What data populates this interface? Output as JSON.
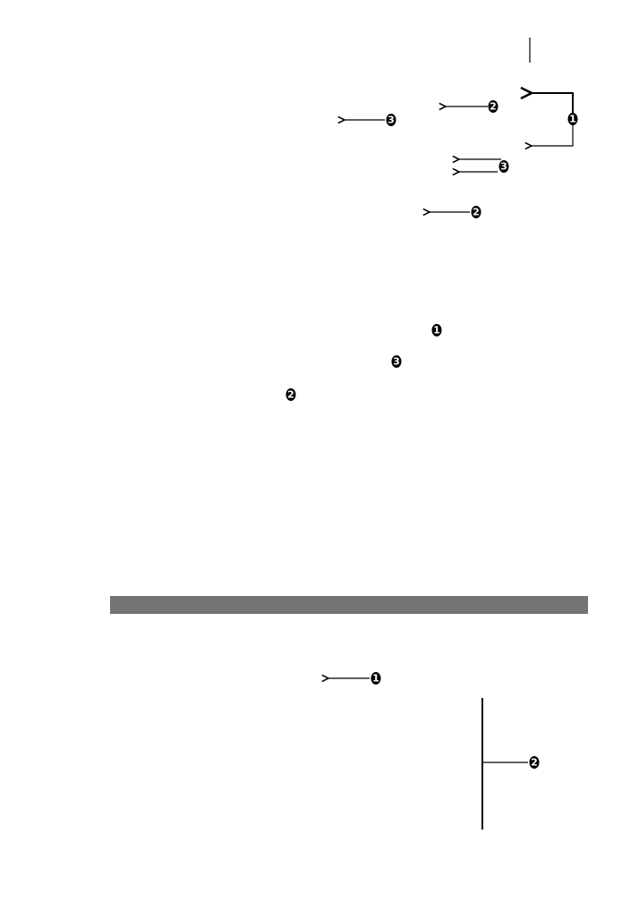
{
  "page": {
    "section_bar_color": "#747474",
    "callouts": [
      {
        "label": "1"
      },
      {
        "label": "2"
      },
      {
        "label": "3"
      },
      {
        "label": "3"
      },
      {
        "label": "2"
      },
      {
        "label": "1"
      },
      {
        "label": "3"
      },
      {
        "label": "2"
      },
      {
        "label": "1"
      },
      {
        "label": "2"
      }
    ]
  }
}
